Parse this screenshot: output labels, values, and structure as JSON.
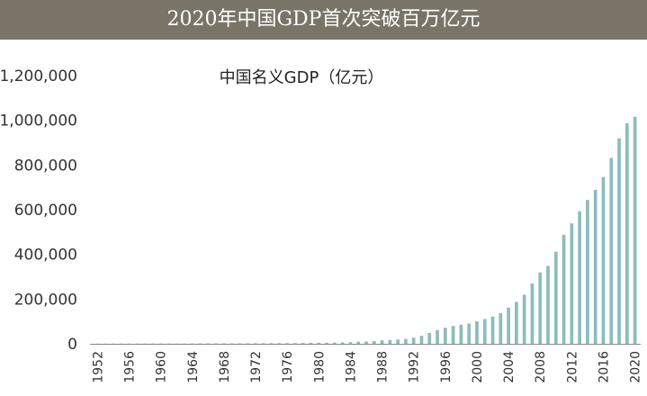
{
  "banner": {
    "title": "2020年中国GDP首次突破百万亿元"
  },
  "chart_data": {
    "type": "bar",
    "title": "中国名义GDP（亿元）",
    "xlabel": "",
    "ylabel": "",
    "ylim": [
      0,
      1200000
    ],
    "yticks": [
      "0",
      "200,000",
      "400,000",
      "600,000",
      "800,000",
      "1,000,000",
      "1,200,000"
    ],
    "xticks": [
      "1952",
      "1956",
      "1960",
      "1964",
      "1968",
      "1972",
      "1976",
      "1980",
      "1984",
      "1988",
      "1992",
      "1996",
      "2000",
      "2004",
      "2008",
      "2012",
      "2016",
      "2020"
    ],
    "categories": [
      "1952",
      "1953",
      "1954",
      "1955",
      "1956",
      "1957",
      "1958",
      "1959",
      "1960",
      "1961",
      "1962",
      "1963",
      "1964",
      "1965",
      "1966",
      "1967",
      "1968",
      "1969",
      "1970",
      "1971",
      "1972",
      "1973",
      "1974",
      "1975",
      "1976",
      "1977",
      "1978",
      "1979",
      "1980",
      "1981",
      "1982",
      "1983",
      "1984",
      "1985",
      "1986",
      "1987",
      "1988",
      "1989",
      "1990",
      "1991",
      "1992",
      "1993",
      "1994",
      "1995",
      "1996",
      "1997",
      "1998",
      "1999",
      "2000",
      "2001",
      "2002",
      "2003",
      "2004",
      "2005",
      "2006",
      "2007",
      "2008",
      "2009",
      "2010",
      "2011",
      "2012",
      "2013",
      "2014",
      "2015",
      "2016",
      "2017",
      "2018",
      "2019",
      "2020"
    ],
    "values": [
      679,
      824,
      859,
      911,
      1030,
      1071,
      1312,
      1447,
      1470,
      1232,
      1162,
      1248,
      1454,
      1717,
      1873,
      1780,
      1730,
      1946,
      2261,
      2435,
      2530,
      2733,
      2803,
      3013,
      2961,
      3221,
      3679,
      4101,
      4588,
      4936,
      5373,
      6021,
      7279,
      9099,
      10376,
      12175,
      15180,
      17180,
      18873,
      22006,
      27195,
      35673,
      48638,
      61340,
      71814,
      79715,
      85196,
      90564,
      100280,
      110863,
      121717,
      137422,
      161840,
      187319,
      219439,
      270092,
      319245,
      348518,
      412119,
      487940,
      538580,
      592963,
      643563,
      688858,
      746395,
      832036,
      919281,
      986515,
      1015986
    ]
  }
}
